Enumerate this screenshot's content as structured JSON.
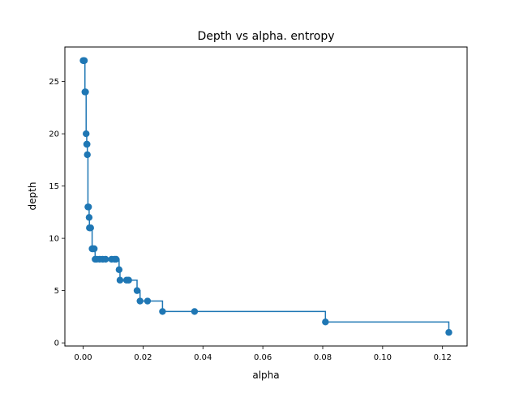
{
  "chart_data": {
    "type": "line",
    "title": "Depth vs alpha. entropy",
    "xlabel": "alpha",
    "ylabel": "depth",
    "xlim": [
      -0.0061,
      0.1282
    ],
    "ylim": [
      -0.3,
      28.3
    ],
    "xticks": [
      0.0,
      0.02,
      0.04,
      0.06,
      0.08,
      0.1,
      0.12
    ],
    "xtick_labels": [
      "0.00",
      "0.02",
      "0.04",
      "0.06",
      "0.08",
      "0.10",
      "0.12"
    ],
    "yticks": [
      0,
      5,
      10,
      15,
      20,
      25
    ],
    "ytick_labels": [
      "0",
      "5",
      "10",
      "15",
      "20",
      "25"
    ],
    "grid": false,
    "legend": "none",
    "drawstyle": "steps-post",
    "marker": "circle",
    "color": "#1f77b4",
    "series": [
      {
        "x": [
          0.0,
          0.0002,
          0.0004,
          0.0006,
          0.0008,
          0.001,
          0.0012,
          0.0013,
          0.0014,
          0.0016,
          0.0018,
          0.002,
          0.0021,
          0.0023,
          0.0025,
          0.003,
          0.0033,
          0.0037,
          0.004,
          0.0045,
          0.0055,
          0.0065,
          0.0075,
          0.0095,
          0.0105,
          0.011,
          0.012,
          0.0123,
          0.0145,
          0.0152,
          0.018,
          0.019,
          0.0215,
          0.0265,
          0.0372,
          0.0809,
          0.1221
        ],
        "y": [
          27,
          27,
          27,
          24,
          24,
          20,
          19,
          19,
          18,
          13,
          13,
          12,
          11,
          11,
          11,
          9,
          9,
          9,
          8,
          8,
          8,
          8,
          8,
          8,
          8,
          8,
          7,
          6,
          6,
          6,
          5,
          4,
          4,
          3,
          3,
          2,
          1
        ]
      }
    ]
  }
}
